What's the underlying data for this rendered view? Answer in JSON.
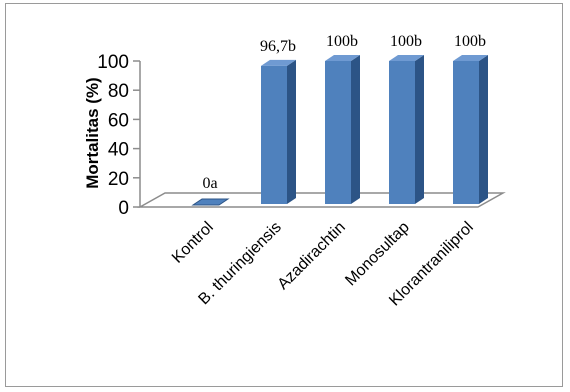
{
  "chart_data": {
    "type": "bar",
    "style": "3d-column",
    "categories": [
      "Kontrol",
      "B. thuringiensis",
      "Azadirachtin",
      "Monosultap",
      "Klorantraniliprol"
    ],
    "values": [
      0,
      96.7,
      100,
      100,
      100
    ],
    "data_labels": [
      "0a",
      "96,7b",
      "100b",
      "100b",
      "100b"
    ],
    "ylabel": "Mortalitas (%)",
    "xlabel": "",
    "title": "",
    "ylim": [
      0,
      100
    ],
    "yticks": [
      "0",
      "20",
      "40",
      "60",
      "80",
      "100"
    ],
    "grid": false,
    "legend": "none",
    "colors": {
      "bar_front": "#4f81bd",
      "bar_side": "#2c5486",
      "bar_top": "#6f9ad2",
      "axis": "#8c8c8c"
    }
  }
}
